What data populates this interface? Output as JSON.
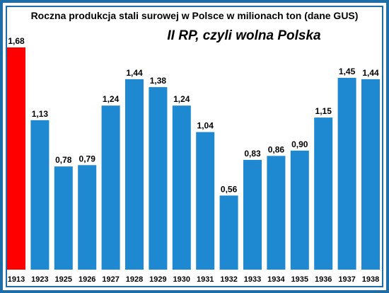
{
  "chart_data": {
    "type": "bar",
    "title": "Roczna produkcja stali surowej w Polsce w milionach ton (dane GUS)",
    "subtitle": "II RP, czyli wolna Polska",
    "categories": [
      "1913",
      "1923",
      "1925",
      "1926",
      "1927",
      "1928",
      "1929",
      "1930",
      "1931",
      "1932",
      "1933",
      "1934",
      "1935",
      "1936",
      "1937",
      "1938"
    ],
    "values": [
      1.68,
      1.13,
      0.78,
      0.79,
      1.24,
      1.44,
      1.38,
      1.24,
      1.04,
      0.56,
      0.83,
      0.86,
      0.9,
      1.15,
      1.45,
      1.44
    ],
    "value_labels": [
      "1,68",
      "1,13",
      "0,78",
      "0,79",
      "1,24",
      "1,44",
      "1,38",
      "1,24",
      "1,04",
      "0,56",
      "0,83",
      "0,86",
      "0,90",
      "1,15",
      "1,45",
      "1,44"
    ],
    "ylim": [
      0,
      1.68
    ],
    "grid": false,
    "colors": {
      "bar": "#1e88d0",
      "highlight": "#ff0000",
      "frame": "#1f6ea8"
    },
    "highlight_categories": [
      "1913"
    ]
  }
}
